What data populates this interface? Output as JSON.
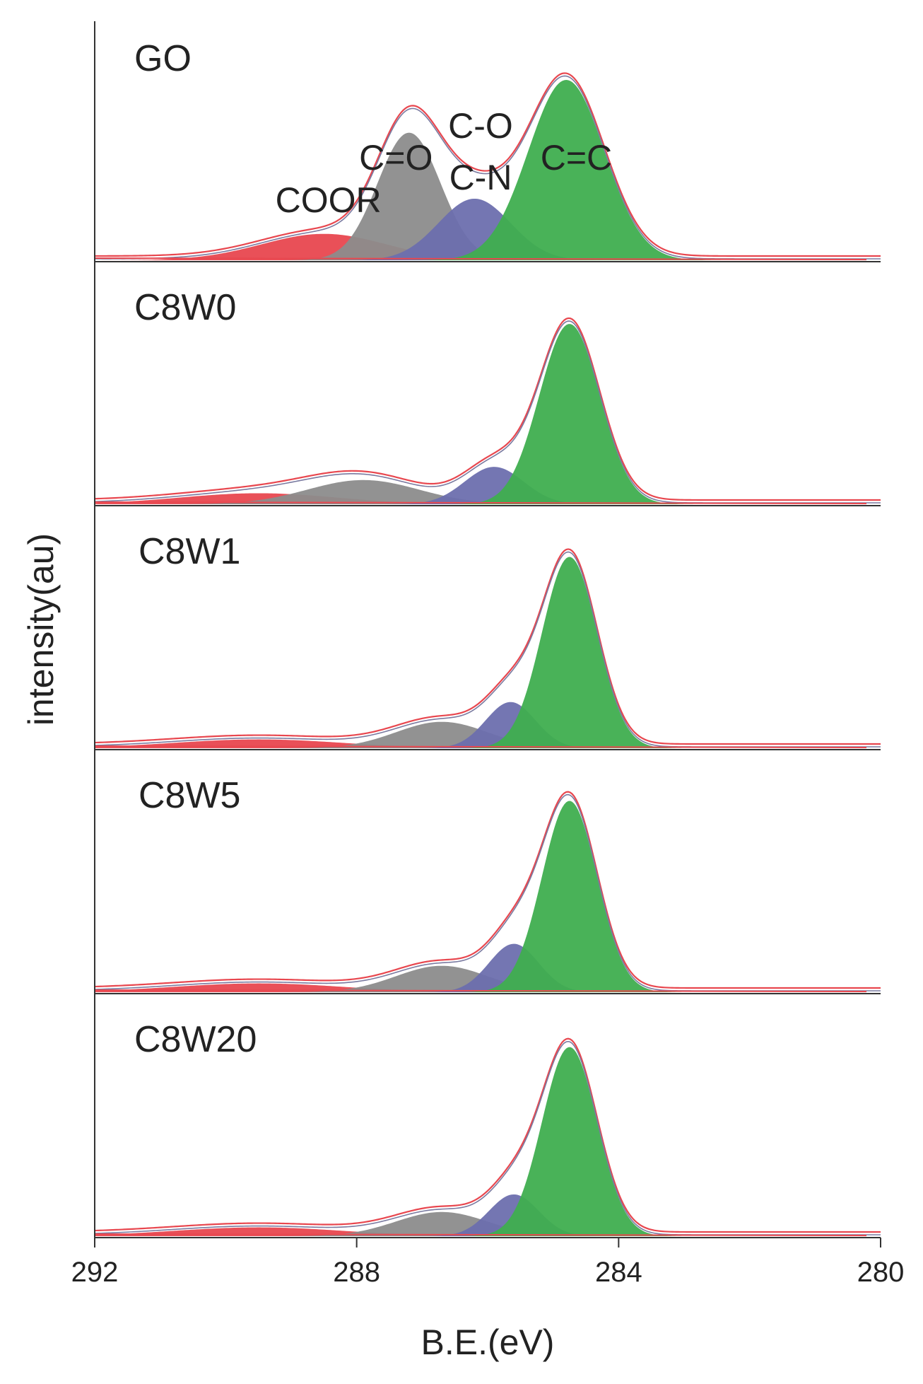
{
  "chart_data": {
    "type": "area",
    "title": "",
    "xlabel": "B.E.(eV)",
    "ylabel": "intensity(au)",
    "xlim": [
      292,
      280
    ],
    "x_ticks": [
      292,
      288,
      284,
      280
    ],
    "x_tick_labels": [
      "292",
      "288",
      "284",
      "280"
    ],
    "component_colors": {
      "COOR": "#e8474f",
      "C=O": "#8c8c8c",
      "C-O/C-N": "#6d6fae",
      "C=C": "#3fae4f",
      "envelope_outer": "#e8474f",
      "envelope_inner": "#7a7aa0"
    },
    "peak_labels": [
      {
        "text": "COOR",
        "x_ev": 288.0
      },
      {
        "text": "C=O",
        "x_ev": 287.4
      },
      {
        "text": "C-O",
        "x_ev": 286.0
      },
      {
        "text": "C-N",
        "x_ev": 286.0
      },
      {
        "text": "C=C",
        "x_ev": 284.7
      }
    ],
    "panels": [
      {
        "name": "GO",
        "components": [
          {
            "label": "COOR",
            "center": 288.5,
            "height": 0.12,
            "sigma": 0.95
          },
          {
            "label": "C=O",
            "center": 287.2,
            "height": 0.58,
            "sigma": 0.48
          },
          {
            "label": "C-O/C-N",
            "center": 286.2,
            "height": 0.28,
            "sigma": 0.55
          },
          {
            "label": "C=C",
            "center": 284.8,
            "height": 0.82,
            "sigma": 0.58
          }
        ]
      },
      {
        "name": "C8W0",
        "components": [
          {
            "label": "COOR",
            "center": 289.5,
            "height": 0.05,
            "sigma": 1.2
          },
          {
            "label": "C=O",
            "center": 287.9,
            "height": 0.11,
            "sigma": 0.85
          },
          {
            "label": "C-O/C-N",
            "center": 285.9,
            "height": 0.17,
            "sigma": 0.45
          },
          {
            "label": "C=C",
            "center": 284.75,
            "height": 0.82,
            "sigma": 0.46
          }
        ]
      },
      {
        "name": "C8W1",
        "components": [
          {
            "label": "COOR",
            "center": 289.5,
            "height": 0.04,
            "sigma": 1.3
          },
          {
            "label": "C=O",
            "center": 286.7,
            "height": 0.12,
            "sigma": 0.7
          },
          {
            "label": "C-O/C-N",
            "center": 285.65,
            "height": 0.21,
            "sigma": 0.38
          },
          {
            "label": "C=C",
            "center": 284.75,
            "height": 0.87,
            "sigma": 0.42
          }
        ]
      },
      {
        "name": "C8W5",
        "components": [
          {
            "label": "COOR",
            "center": 289.5,
            "height": 0.04,
            "sigma": 1.3
          },
          {
            "label": "C=O",
            "center": 286.7,
            "height": 0.12,
            "sigma": 0.7
          },
          {
            "label": "C-O/C-N",
            "center": 285.6,
            "height": 0.22,
            "sigma": 0.38
          },
          {
            "label": "C=C",
            "center": 284.75,
            "height": 0.87,
            "sigma": 0.42
          }
        ]
      },
      {
        "name": "C8W20",
        "components": [
          {
            "label": "COOR",
            "center": 289.5,
            "height": 0.04,
            "sigma": 1.3
          },
          {
            "label": "C=O",
            "center": 286.7,
            "height": 0.11,
            "sigma": 0.7
          },
          {
            "label": "C-O/C-N",
            "center": 285.6,
            "height": 0.19,
            "sigma": 0.38
          },
          {
            "label": "C=C",
            "center": 284.75,
            "height": 0.86,
            "sigma": 0.42
          }
        ]
      }
    ]
  }
}
